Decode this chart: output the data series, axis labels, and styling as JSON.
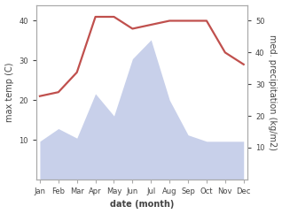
{
  "months": [
    "Jan",
    "Feb",
    "Mar",
    "Apr",
    "May",
    "Jun",
    "Jul",
    "Aug",
    "Sep",
    "Oct",
    "Nov",
    "Dec"
  ],
  "month_positions": [
    1,
    2,
    3,
    4,
    5,
    6,
    7,
    8,
    9,
    10,
    11,
    12
  ],
  "temperature": [
    21,
    22,
    27,
    41,
    41,
    38,
    39,
    40,
    40,
    40,
    32,
    29
  ],
  "precipitation": [
    12,
    16,
    13,
    27,
    20,
    38,
    44,
    25,
    14,
    12,
    12,
    12
  ],
  "temp_color": "#c0504d",
  "precip_fill_color": "#c8d0ea",
  "temp_ylim": [
    0,
    44
  ],
  "precip_ylim": [
    0,
    55
  ],
  "temp_yticks": [
    10,
    20,
    30,
    40
  ],
  "precip_yticks": [
    10,
    20,
    30,
    40,
    50
  ],
  "ylabel_left": "max temp (C)",
  "ylabel_right": "med. precipitation (kg/m2)",
  "xlabel": "date (month)",
  "background_color": "#ffffff",
  "spine_color": "#aaaaaa",
  "tick_color": "#444444",
  "label_fontsize": 7.0,
  "tick_fontsize": 6.0,
  "line_width": 1.6
}
